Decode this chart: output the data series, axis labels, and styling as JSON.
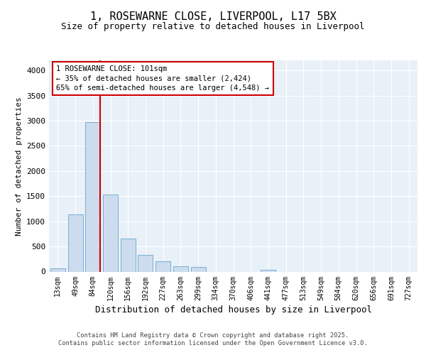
{
  "title_line1": "1, ROSEWARNE CLOSE, LIVERPOOL, L17 5BX",
  "title_line2": "Size of property relative to detached houses in Liverpool",
  "xlabel": "Distribution of detached houses by size in Liverpool",
  "ylabel": "Number of detached properties",
  "categories": [
    "13sqm",
    "49sqm",
    "84sqm",
    "120sqm",
    "156sqm",
    "192sqm",
    "227sqm",
    "263sqm",
    "299sqm",
    "334sqm",
    "370sqm",
    "406sqm",
    "441sqm",
    "477sqm",
    "513sqm",
    "549sqm",
    "584sqm",
    "620sqm",
    "656sqm",
    "691sqm",
    "727sqm"
  ],
  "values": [
    60,
    1130,
    2970,
    1530,
    660,
    330,
    210,
    100,
    90,
    0,
    0,
    0,
    30,
    0,
    0,
    0,
    0,
    0,
    0,
    0,
    0
  ],
  "bar_color": "#ccdcee",
  "bar_edge_color": "#7aaed0",
  "vline_x_index": 2,
  "vline_color": "#cc0000",
  "annotation_text": "1 ROSEWARNE CLOSE: 101sqm\n← 35% of detached houses are smaller (2,424)\n65% of semi-detached houses are larger (4,548) →",
  "ann_box_fc": "white",
  "ann_box_ec": "#cc0000",
  "ylim_max": 4200,
  "yticks": [
    0,
    500,
    1000,
    1500,
    2000,
    2500,
    3000,
    3500,
    4000
  ],
  "fig_bg": "#ffffff",
  "plot_bg": "#e8f0f8",
  "grid_color": "#ffffff",
  "footer_text": "Contains HM Land Registry data © Crown copyright and database right 2025.\nContains public sector information licensed under the Open Government Licence v3.0.",
  "title_fontsize": 11,
  "subtitle_fontsize": 9,
  "tick_fontsize": 7,
  "ylabel_fontsize": 8,
  "xlabel_fontsize": 9
}
